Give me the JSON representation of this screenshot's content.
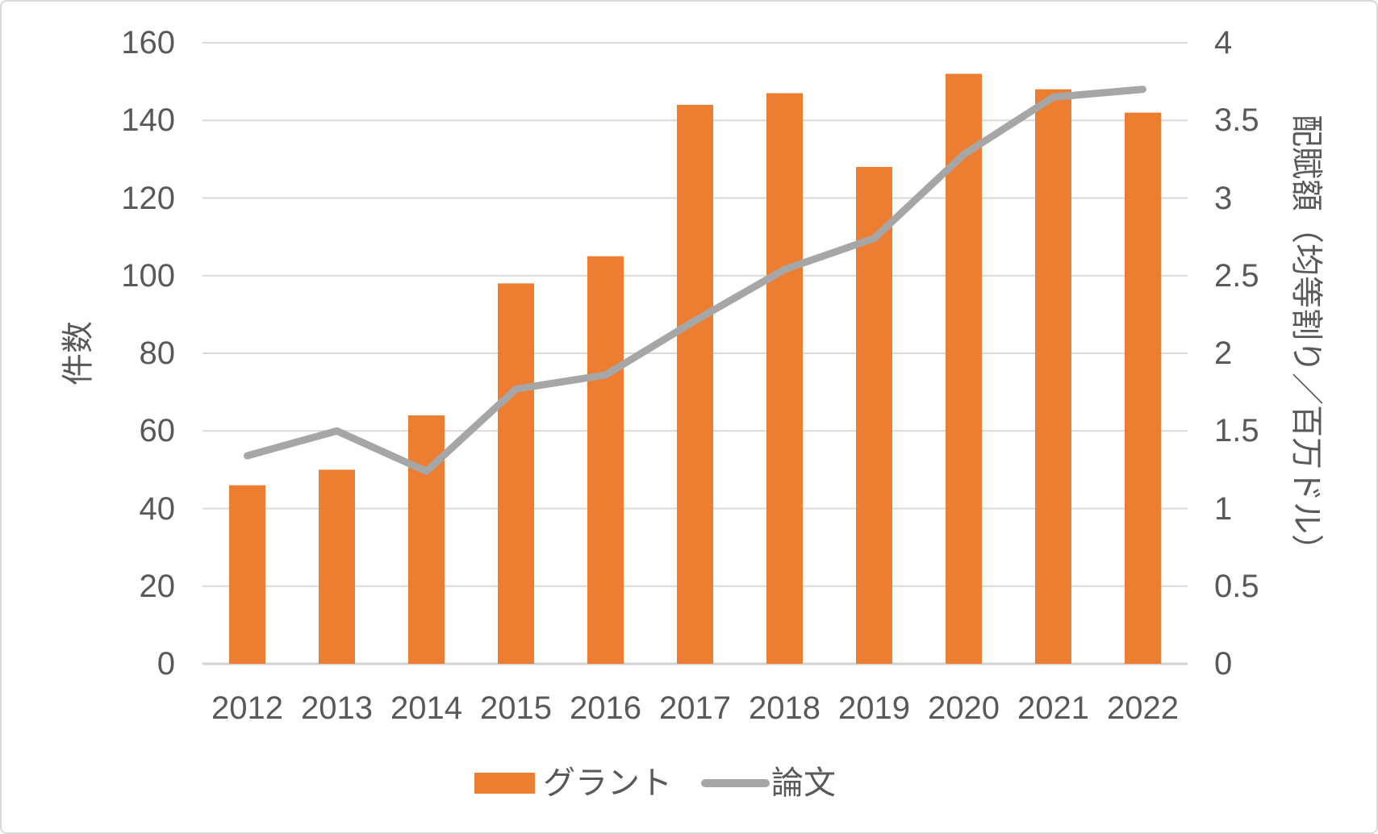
{
  "chart_data": {
    "type": "combo_bar_line",
    "title": "",
    "categories": [
      "2012",
      "2013",
      "2014",
      "2015",
      "2016",
      "2017",
      "2018",
      "2019",
      "2020",
      "2021",
      "2022"
    ],
    "series": [
      {
        "name": "グラント",
        "type": "bar",
        "axis": "left",
        "color": "#ED7D31",
        "values": [
          46,
          50,
          64,
          98,
          105,
          144,
          147,
          128,
          152,
          148,
          142
        ]
      },
      {
        "name": "論文",
        "type": "line",
        "axis": "right",
        "color": "#A6A6A6",
        "values": [
          1.34,
          1.5,
          1.24,
          1.77,
          1.86,
          2.21,
          2.54,
          2.74,
          3.28,
          3.65,
          3.7
        ]
      }
    ],
    "left_axis": {
      "label": "件数",
      "min": 0,
      "max": 160,
      "step": 20,
      "ticks": [
        "160",
        "140",
        "120",
        "100",
        "80",
        "60",
        "40",
        "20",
        "0"
      ]
    },
    "right_axis": {
      "label": "配賦額（均等割り／百万ドル）",
      "min": 0,
      "max": 4,
      "step": 0.5,
      "ticks": [
        "4",
        "3.5",
        "3",
        "2.5",
        "2",
        "1.5",
        "1",
        "0.5",
        "0"
      ]
    },
    "legend": {
      "position": "bottom",
      "entries": [
        "グラント",
        "論文"
      ]
    },
    "grid": {
      "horizontal": true,
      "vertical": false
    },
    "colors": {
      "bar": "#ED7D31",
      "line": "#A6A6A6",
      "gridline": "#D9D9D9",
      "axis_line": "#D2D2D2",
      "text": "#595959",
      "border": "#D9D9D9",
      "background": "#FFFFFF"
    }
  }
}
